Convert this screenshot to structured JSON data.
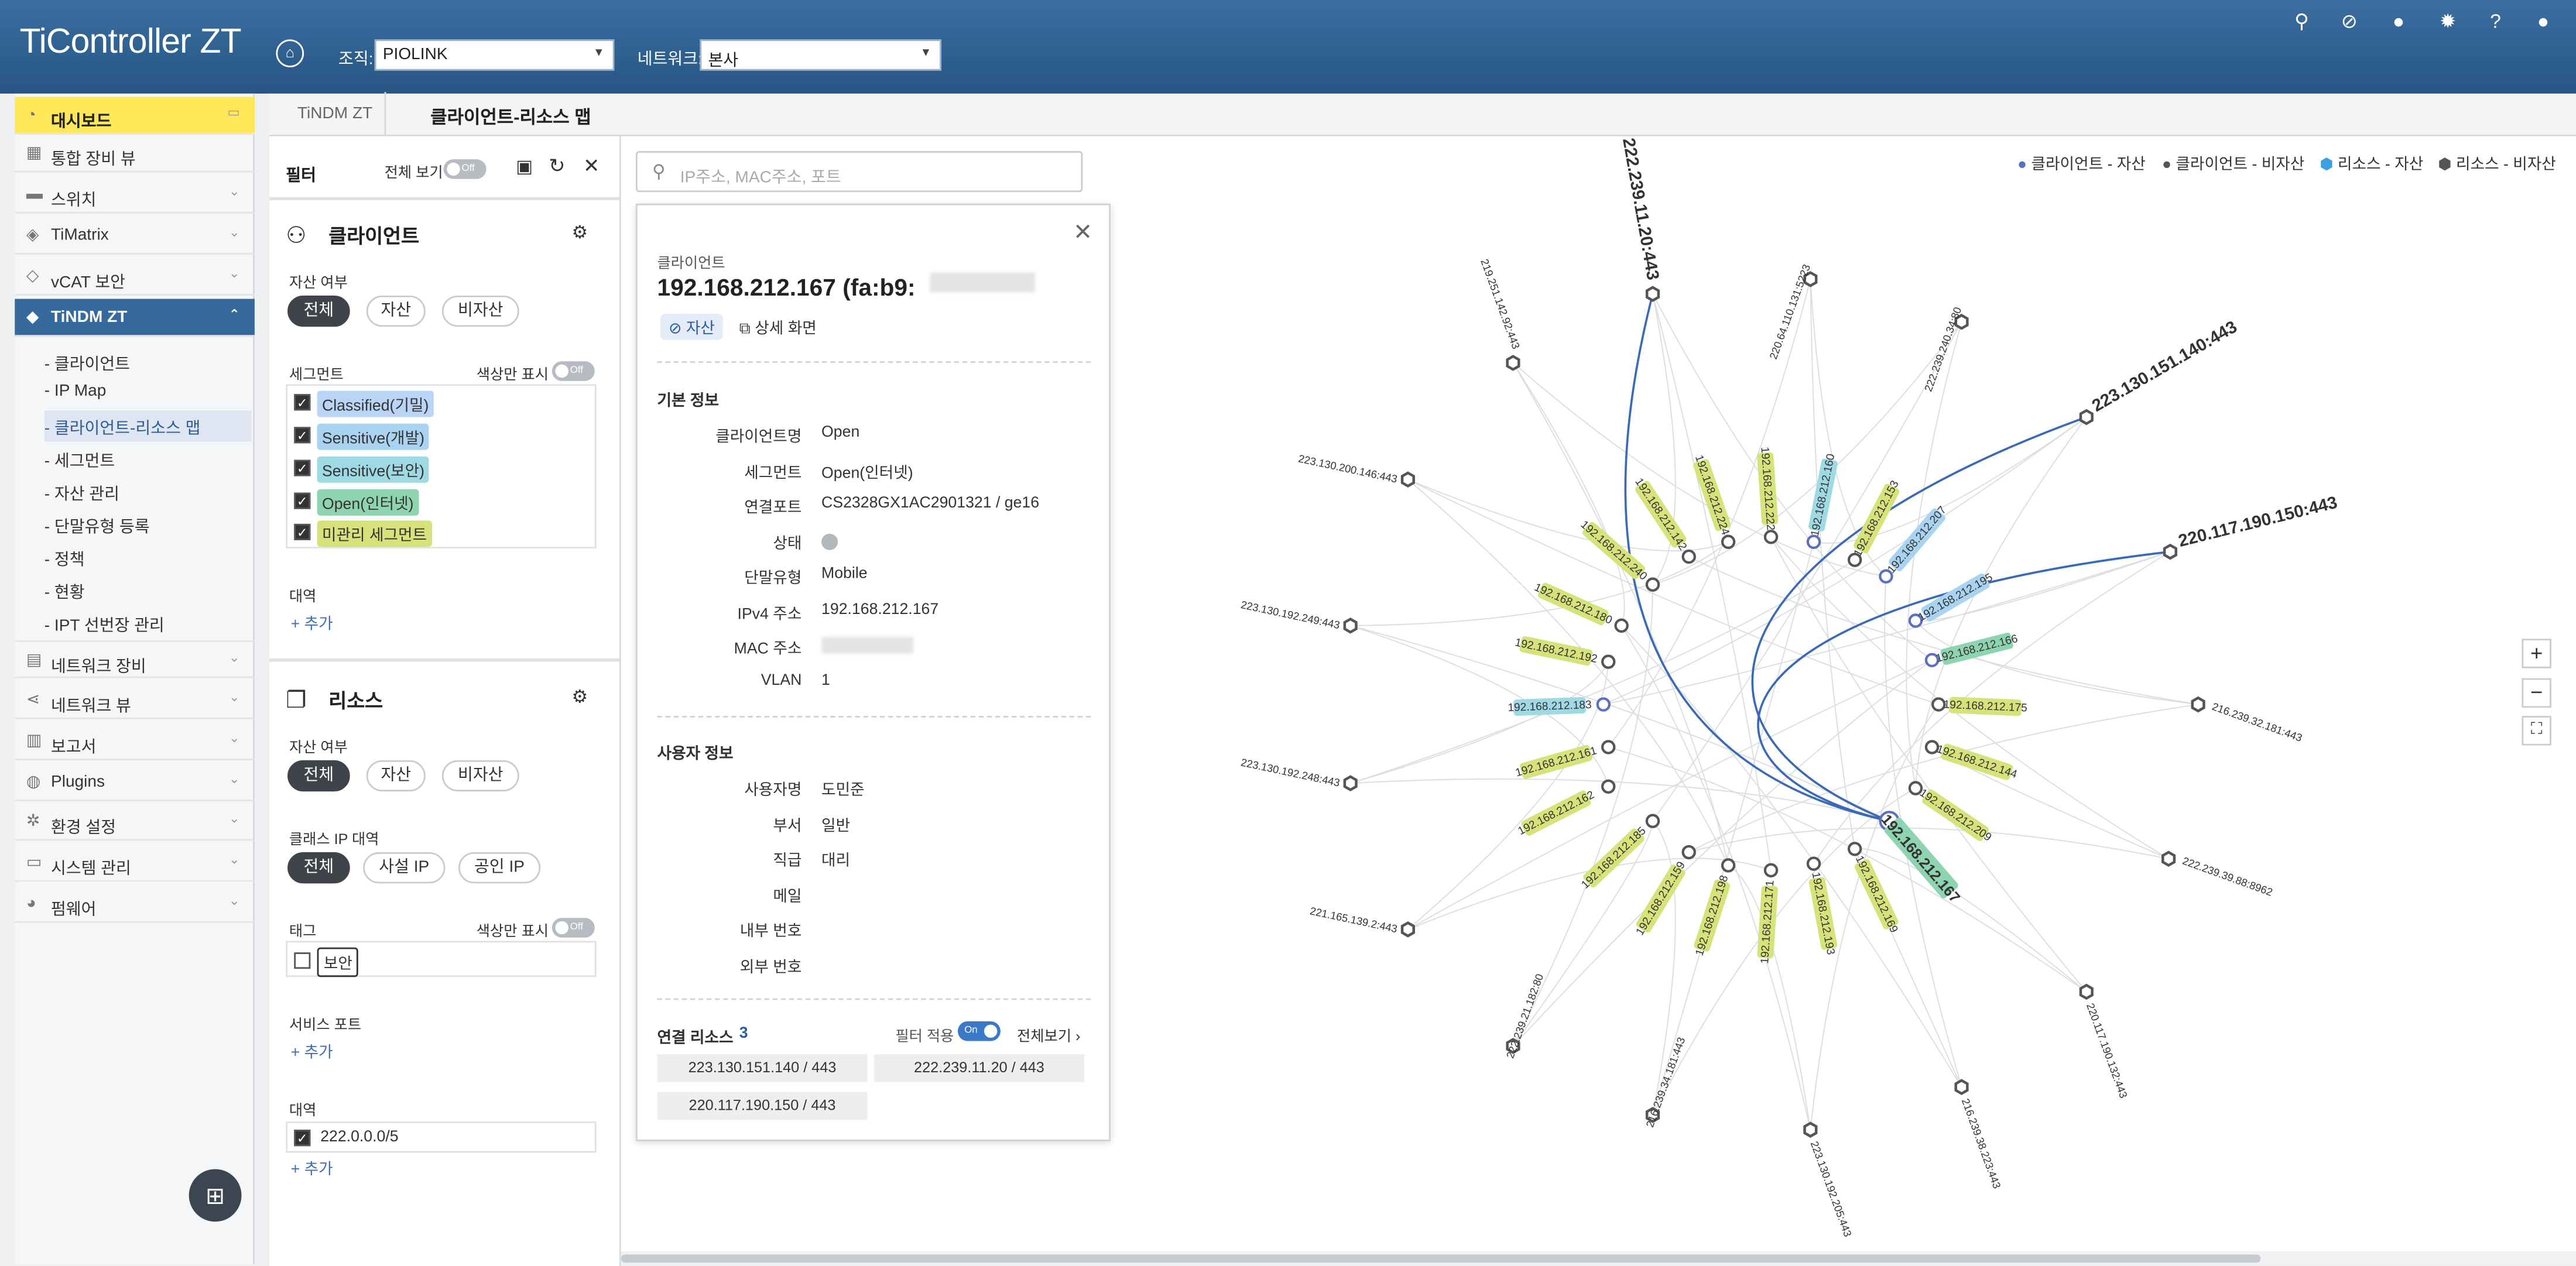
{
  "header": {
    "logo": "TiController ZT",
    "org_label": "조직:",
    "org_value": "PIOLINK",
    "net_label": "네트워크:",
    "net_value": "본사"
  },
  "sidebar": {
    "items": [
      {
        "label": "대시보드"
      },
      {
        "label": "통합 장비 뷰"
      },
      {
        "label": "스위치"
      },
      {
        "label": "TiMatrix"
      },
      {
        "label": "vCAT 보안"
      },
      {
        "label": "TiNDM ZT"
      },
      {
        "label": "네트워크 장비"
      },
      {
        "label": "네트워크 뷰"
      },
      {
        "label": "보고서"
      },
      {
        "label": "Plugins"
      },
      {
        "label": "환경 설정"
      },
      {
        "label": "시스템 관리"
      },
      {
        "label": "펌웨어"
      }
    ],
    "subitems": [
      "- 클라이언트",
      "- IP Map",
      "- 클라이언트-리소스 맵",
      "- 세그먼트",
      "- 자산 관리",
      "- 단말유형 등록",
      "- 정책",
      "- 현황",
      "- IPT 선번장 관리"
    ]
  },
  "tabs": {
    "t1": "TiNDM ZT",
    "t2": "클라이언트-리소스 맵"
  },
  "filter": {
    "title": "필터",
    "view_all": "전체 보기",
    "toggle_off": "Off",
    "client": {
      "title": "클라이언트",
      "asset_label": "자산 여부",
      "asset_opts": [
        "전체",
        "자산",
        "비자산"
      ],
      "segment_label": "세그먼트",
      "color_only": "색상만 표시",
      "segments": [
        "Classified(기밀)",
        "Sensitive(개발)",
        "Sensitive(보안)",
        "Open(인터넷)",
        "미관리 세그먼트"
      ],
      "band_label": "대역",
      "add": "+ 추가"
    },
    "resource": {
      "title": "리소스",
      "asset_label": "자산 여부",
      "asset_opts": [
        "전체",
        "자산",
        "비자산"
      ],
      "ipband_label": "클래스 IP 대역",
      "ipband_opts": [
        "전체",
        "사설 IP",
        "공인 IP"
      ],
      "tag_label": "태그",
      "color_only": "색상만 표시",
      "tag": "보안",
      "port_label": "서비스 포트",
      "add": "+ 추가",
      "band_label": "대역",
      "band_value": "222.0.0.0/5"
    }
  },
  "search": {
    "placeholder": "IP주소, MAC주소, 포트"
  },
  "popup": {
    "kind": "클라이언트",
    "title": "192.168.212.167 (fa:b9:",
    "badge": "자산",
    "detail": "상세 화면",
    "basic_title": "기본 정보",
    "basic": [
      {
        "k": "클라이언트명",
        "v": "Open"
      },
      {
        "k": "세그먼트",
        "v": "Open(인터넷)"
      },
      {
        "k": "연결포트",
        "v": "CS2328GX1AC2901321 / ge16"
      },
      {
        "k": "상태",
        "v": ""
      },
      {
        "k": "단말유형",
        "v": "Mobile"
      },
      {
        "k": "IPv4 주소",
        "v": "192.168.212.167"
      },
      {
        "k": "MAC 주소",
        "v": ""
      },
      {
        "k": "VLAN",
        "v": "1"
      }
    ],
    "user_title": "사용자 정보",
    "user": [
      {
        "k": "사용자명",
        "v": "도민준"
      },
      {
        "k": "부서",
        "v": "일반"
      },
      {
        "k": "직급",
        "v": "대리"
      },
      {
        "k": "메일",
        "v": ""
      },
      {
        "k": "내부 번호",
        "v": ""
      },
      {
        "k": "외부 번호",
        "v": ""
      }
    ],
    "res_title": "연결 리소스",
    "res_count": "3",
    "filter_apply": "필터 적용",
    "toggle_on": "On",
    "view_all": "전체보기",
    "resources": [
      "223.130.151.140 / 443",
      "222.239.11.20 / 443",
      "220.117.190.150 / 443"
    ]
  },
  "legend": [
    "클라이언트 - 자산",
    "클라이언트 - 비자산",
    "리소스 - 자산",
    "리소스 - 비자산"
  ],
  "map": {
    "clients": [
      {
        "ip": "192.168.212.240",
        "color": "#d6e27a"
      },
      {
        "ip": "192.168.212.224",
        "color": "#d6e27a"
      },
      {
        "ip": "192.168.212.222",
        "color": "#d6e27a"
      },
      {
        "ip": "192.168.212.160",
        "color": "#9fd9e3"
      },
      {
        "ip": "192.168.212.153",
        "color": "#d6e27a"
      },
      {
        "ip": "192.168.212.207",
        "color": "#a9d3f0"
      },
      {
        "ip": "192.168.212.195",
        "color": "#a9d3f0"
      },
      {
        "ip": "192.168.212.166",
        "color": "#8fd4b0"
      },
      {
        "ip": "192.168.212.175",
        "color": "#d6e27a"
      },
      {
        "ip": "192.168.212.144",
        "color": "#d6e27a"
      },
      {
        "ip": "192.168.212.209",
        "color": "#d6e27a"
      },
      {
        "ip": "192.168.212.167",
        "color": "#8fd4b0"
      },
      {
        "ip": "192.168.212.169",
        "color": "#d6e27a"
      },
      {
        "ip": "192.168.212.193",
        "color": "#d6e27a"
      },
      {
        "ip": "192.168.212.171",
        "color": "#d6e27a"
      },
      {
        "ip": "192.168.212.198",
        "color": "#d6e27a"
      },
      {
        "ip": "192.168.212.159",
        "color": "#d6e27a"
      },
      {
        "ip": "192.168.212.185",
        "color": "#d6e27a"
      },
      {
        "ip": "192.168.212.162",
        "color": "#d6e27a"
      },
      {
        "ip": "192.168.212.161",
        "color": "#d6e27a"
      },
      {
        "ip": "192.168.212.183",
        "color": "#9fd9e3"
      },
      {
        "ip": "192.168.212.192",
        "color": "#d6e27a"
      },
      {
        "ip": "192.168.212.180",
        "color": "#d6e27a"
      },
      {
        "ip": "192.168.212.142",
        "color": "#d6e27a"
      }
    ],
    "resources": [
      {
        "ip": "222.239.11.20:443",
        "bold": true
      },
      {
        "ip": "220.64.110.131:5223",
        "bold": false
      },
      {
        "ip": "222.239.240.34:80",
        "bold": false
      },
      {
        "ip": "219.251.142.92:443",
        "bold": false
      },
      {
        "ip": "223.130.151.140:443",
        "bold": true
      },
      {
        "ip": "223.130.200.146:443",
        "bold": false
      },
      {
        "ip": "220.117.190.150:443",
        "bold": true
      },
      {
        "ip": "223.130.192.249:443",
        "bold": false
      },
      {
        "ip": "216.239.32.181:443",
        "bold": false
      },
      {
        "ip": "223.130.192.248:443",
        "bold": false
      },
      {
        "ip": "222.239.39.88:8962",
        "bold": false
      },
      {
        "ip": "221.165.139.2:443",
        "bold": false
      },
      {
        "ip": "220.117.190.132:443",
        "bold": false
      },
      {
        "ip": "222.239.21.182:80",
        "bold": false
      },
      {
        "ip": "216.239.38.223:443",
        "bold": false
      },
      {
        "ip": "216.239.34.181:443",
        "bold": false
      },
      {
        "ip": "223.130.192.205:443",
        "bold": false
      }
    ]
  }
}
